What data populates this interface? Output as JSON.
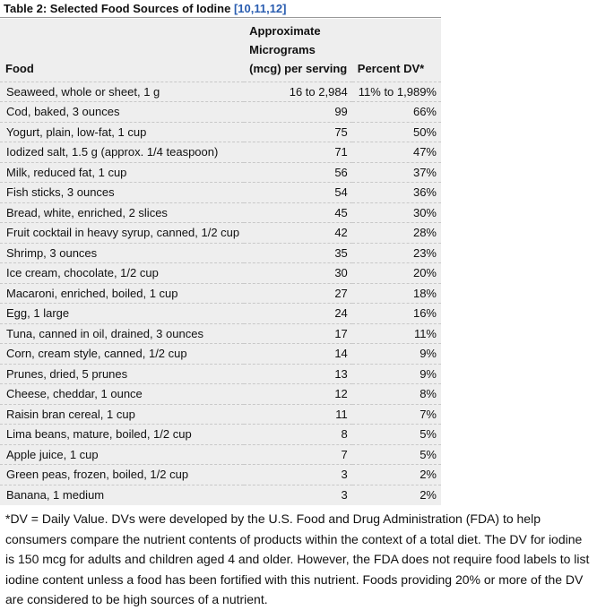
{
  "table": {
    "title": "Table 2: Selected Food Sources of Iodine",
    "references": "[10,11,12]",
    "header": [
      "Food",
      "Approximate Micrograms (mcg) per serving",
      "Percent DV*"
    ],
    "rows": [
      [
        "Seaweed, whole or sheet, 1 g",
        "16 to 2,984",
        "11% to 1,989%"
      ],
      [
        "Cod, baked, 3 ounces",
        99,
        "66%"
      ],
      [
        "Yogurt, plain, low-fat, 1 cup",
        75,
        "50%"
      ],
      [
        "Iodized salt, 1.5 g (approx. 1/4 teaspoon)",
        71,
        "47%"
      ],
      [
        "Milk, reduced fat, 1 cup",
        56,
        "37%"
      ],
      [
        "Fish sticks, 3 ounces",
        54,
        "36%"
      ],
      [
        "Bread, white, enriched, 2 slices",
        45,
        "30%"
      ],
      [
        "Fruit cocktail in heavy syrup, canned, 1/2 cup",
        42,
        "28%"
      ],
      [
        "Shrimp, 3 ounces",
        35,
        "23%"
      ],
      [
        "Ice cream, chocolate, 1/2 cup",
        30,
        "20%"
      ],
      [
        "Macaroni, enriched, boiled, 1 cup",
        27,
        "18%"
      ],
      [
        "Egg, 1 large",
        24,
        "16%"
      ],
      [
        "Tuna, canned in oil, drained, 3 ounces",
        17,
        "11%"
      ],
      [
        "Corn, cream style, canned, 1/2 cup",
        14,
        "9%"
      ],
      [
        "Prunes, dried, 5 prunes",
        13,
        "9%"
      ],
      [
        "Cheese, cheddar, 1 ounce",
        12,
        "8%"
      ],
      [
        "Raisin bran cereal, 1 cup",
        11,
        "7%"
      ],
      [
        "Lima beans, mature, boiled, 1/2 cup",
        8,
        "5%"
      ],
      [
        "Apple juice, 1 cup",
        7,
        "5%"
      ],
      [
        "Green peas, frozen, boiled, 1/2 cup",
        3,
        "2%"
      ],
      [
        "Banana, 1 medium",
        3,
        "2%"
      ]
    ],
    "footnote": "*DV = Daily Value. DVs were developed by the U.S. Food and Drug Administration (FDA) to help consumers compare the nutrient contents of products within the context of a total diet. The DV for iodine is 150 mcg for adults and children aged 4 and older. However, the FDA does not require food labels to list iodine content unless a food has been fortified with this nutrient. Foods providing 20% or more of the DV are considered to be high sources of a nutrient."
  }
}
